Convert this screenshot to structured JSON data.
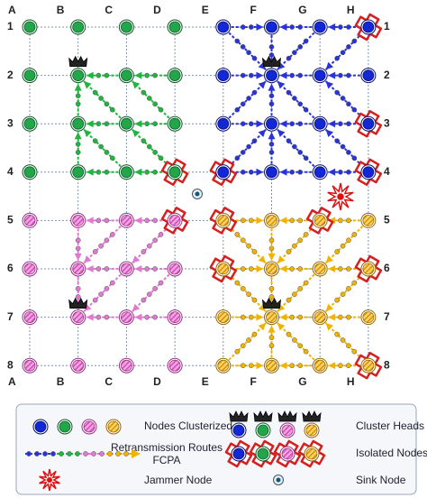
{
  "columns": [
    "A",
    "B",
    "C",
    "D",
    "E",
    "F",
    "G",
    "H"
  ],
  "rows": [
    "1",
    "2",
    "3",
    "4",
    "5",
    "6",
    "7",
    "8"
  ],
  "legend": {
    "nodes_clusterized": "Nodes Clusterized",
    "cluster_heads": "Cluster Heads",
    "routes_line1": "Retransmission Routes",
    "routes_line2": "FCPA",
    "isolated_nodes": "Isolated Nodes",
    "jammer_node": "Jammer Node",
    "sink_node": "Sink Node"
  }
}
